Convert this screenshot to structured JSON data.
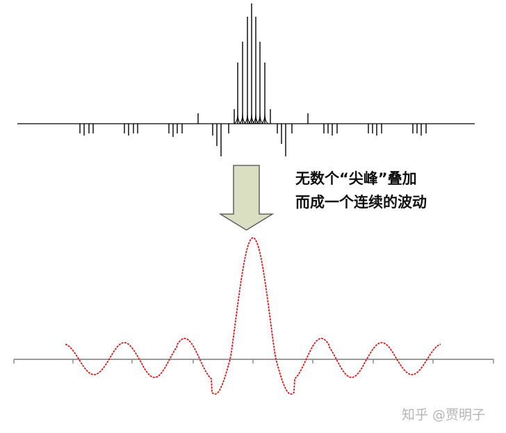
{
  "caption": {
    "line1": "无数个“尖峰”叠加",
    "line2": "而成一个连续的波动"
  },
  "watermark": "知乎 @贾明子",
  "colors": {
    "spectrum": "#000000",
    "arrow_fill": "#d9dfc0",
    "arrow_stroke": "#4a4a4a",
    "wave": "#d61a1a",
    "axis": "#8c8c8c"
  },
  "icons": {
    "arrow": "down-arrow-icon"
  }
}
